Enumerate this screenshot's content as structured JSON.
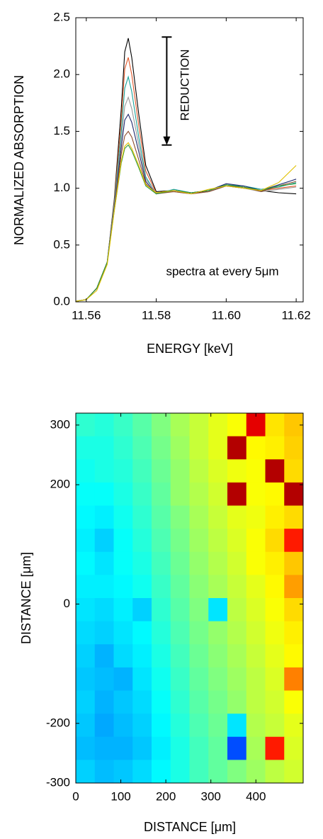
{
  "chart_data": [
    {
      "type": "line",
      "x_label": "ENERGY [keV]",
      "y_label": "NORMALIZED ABSORPTION",
      "annotations": [
        "REDUCTION",
        "spectra at every 5μm"
      ],
      "arrow": {
        "x": 11.583,
        "from": 2.33,
        "to": 1.38
      },
      "xlim": [
        11.557,
        11.622
      ],
      "ylim": [
        0,
        2.5
      ],
      "xticks": [
        11.56,
        11.58,
        {
          "value": 11.6,
          "label": "11.60"
        },
        11.62
      ],
      "yticks": [
        {
          "value": 0,
          "label": "0.0"
        },
        0.5,
        {
          "value": 1,
          "label": "1.0"
        },
        1.5,
        {
          "value": 2,
          "label": "2.0"
        },
        2.5
      ],
      "x": [
        11.556,
        11.56,
        11.563,
        11.566,
        11.568,
        11.57,
        11.571,
        11.572,
        11.573,
        11.575,
        11.577,
        11.58,
        11.585,
        11.59,
        11.595,
        11.6,
        11.605,
        11.61,
        11.615,
        11.62
      ],
      "series": [
        {
          "color": "#000000",
          "values": [
            0,
            0.02,
            0.12,
            0.35,
            0.9,
            1.7,
            2.2,
            2.32,
            2.15,
            1.65,
            1.2,
            0.97,
            0.98,
            0.96,
            0.97,
            1.02,
            1.0,
            0.98,
            0.96,
            0.95
          ]
        },
        {
          "color": "#e0582a",
          "values": [
            0,
            0.02,
            0.12,
            0.35,
            0.88,
            1.6,
            2.05,
            2.15,
            2.0,
            1.55,
            1.15,
            0.96,
            0.98,
            0.96,
            0.98,
            1.03,
            1.01,
            0.98,
            1.0,
            1.02
          ]
        },
        {
          "color": "#1aa39a",
          "values": [
            0,
            0.02,
            0.12,
            0.35,
            0.86,
            1.5,
            1.88,
            1.98,
            1.85,
            1.45,
            1.1,
            0.95,
            0.99,
            0.96,
            0.98,
            1.03,
            1.02,
            0.99,
            1.01,
            1.05
          ]
        },
        {
          "color": "#999999",
          "values": [
            0,
            0.02,
            0.12,
            0.35,
            0.84,
            1.42,
            1.72,
            1.8,
            1.7,
            1.38,
            1.08,
            0.96,
            0.97,
            0.95,
            0.97,
            1.02,
            1.0,
            0.97,
            0.99,
            1.01
          ]
        },
        {
          "color": "#1f2a6e",
          "values": [
            0,
            0.02,
            0.12,
            0.35,
            0.82,
            1.36,
            1.6,
            1.65,
            1.58,
            1.32,
            1.06,
            0.95,
            0.98,
            0.96,
            0.98,
            1.04,
            1.02,
            0.98,
            1.03,
            1.08
          ]
        },
        {
          "color": "#8b4a2b",
          "values": [
            0,
            0.02,
            0.12,
            0.35,
            0.81,
            1.3,
            1.46,
            1.5,
            1.45,
            1.25,
            1.04,
            0.95,
            0.97,
            0.95,
            0.97,
            1.02,
            1.01,
            0.97,
            1.02,
            1.06
          ]
        },
        {
          "color": "#2e9a3c",
          "values": [
            0,
            0.02,
            0.12,
            0.35,
            0.8,
            1.22,
            1.35,
            1.38,
            1.33,
            1.18,
            1.02,
            0.95,
            0.98,
            0.96,
            0.98,
            1.03,
            1.01,
            0.98,
            1.02,
            1.04
          ]
        },
        {
          "color": "#e0c000",
          "values": [
            0,
            0.02,
            0.1,
            0.33,
            0.8,
            1.24,
            1.37,
            1.4,
            1.35,
            1.2,
            1.03,
            0.96,
            0.98,
            0.95,
            0.99,
            1.02,
            1.0,
            0.98,
            1.05,
            1.2
          ]
        }
      ]
    },
    {
      "type": "heatmap",
      "colormap": "jet",
      "x_label": "DISTANCE [μm]",
      "y_label": "DISTANCE [μm]",
      "xlim": [
        0,
        505
      ],
      "ylim": [
        -300,
        320
      ],
      "xticks": [
        0,
        100,
        200,
        300,
        400
      ],
      "yticks": [
        300,
        200,
        0,
        -200,
        -300
      ],
      "z": [
        [
          0.42,
          0.41,
          0.43,
          0.46,
          0.5,
          0.54,
          0.57,
          0.6,
          0.62,
          0.9,
          0.65,
          0.68
        ],
        [
          0.4,
          0.4,
          0.42,
          0.45,
          0.49,
          0.53,
          0.57,
          0.6,
          0.95,
          0.63,
          0.64,
          0.67
        ],
        [
          0.39,
          0.4,
          0.41,
          0.44,
          0.48,
          0.52,
          0.56,
          0.59,
          0.61,
          0.62,
          0.95,
          0.66
        ],
        [
          0.38,
          0.38,
          0.4,
          0.43,
          0.47,
          0.52,
          0.55,
          0.58,
          0.95,
          0.62,
          0.63,
          0.95
        ],
        [
          0.37,
          0.36,
          0.39,
          0.42,
          0.46,
          0.5,
          0.54,
          0.57,
          0.6,
          0.61,
          0.64,
          0.66
        ],
        [
          0.36,
          0.33,
          0.38,
          0.41,
          0.45,
          0.49,
          0.53,
          0.56,
          0.59,
          0.62,
          0.66,
          0.85
        ],
        [
          0.37,
          0.35,
          0.38,
          0.4,
          0.44,
          0.48,
          0.52,
          0.55,
          0.58,
          0.62,
          0.64,
          0.68
        ],
        [
          0.36,
          0.36,
          0.37,
          0.39,
          0.43,
          0.47,
          0.51,
          0.54,
          0.57,
          0.6,
          0.63,
          0.72
        ],
        [
          0.35,
          0.34,
          0.36,
          0.33,
          0.42,
          0.46,
          0.5,
          0.35,
          0.56,
          0.59,
          0.62,
          0.66
        ],
        [
          0.34,
          0.33,
          0.35,
          0.37,
          0.41,
          0.45,
          0.49,
          0.52,
          0.55,
          0.58,
          0.61,
          0.64
        ],
        [
          0.33,
          0.3,
          0.34,
          0.36,
          0.4,
          0.44,
          0.48,
          0.51,
          0.54,
          0.57,
          0.6,
          0.63
        ],
        [
          0.32,
          0.31,
          0.3,
          0.35,
          0.39,
          0.43,
          0.47,
          0.5,
          0.53,
          0.56,
          0.59,
          0.75
        ],
        [
          0.33,
          0.3,
          0.32,
          0.34,
          0.38,
          0.42,
          0.46,
          0.49,
          0.52,
          0.56,
          0.58,
          0.62
        ],
        [
          0.32,
          0.29,
          0.31,
          0.33,
          0.37,
          0.41,
          0.45,
          0.48,
          0.35,
          0.55,
          0.57,
          0.6
        ],
        [
          0.31,
          0.3,
          0.3,
          0.32,
          0.36,
          0.4,
          0.44,
          0.47,
          0.2,
          0.54,
          0.85,
          0.59
        ],
        [
          0.33,
          0.31,
          0.32,
          0.34,
          0.37,
          0.4,
          0.44,
          0.47,
          0.5,
          0.53,
          0.56,
          0.58
        ]
      ]
    }
  ]
}
